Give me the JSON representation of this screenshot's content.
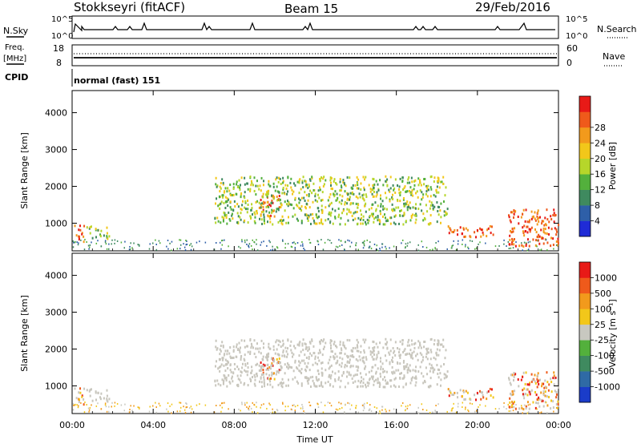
{
  "header": {
    "station": "Stokkseyri (fitACF)",
    "beam": "Beam 15",
    "date": "29/Feb/2016"
  },
  "top_panels": {
    "nsky_label": "N.Sky",
    "nsearch_label": "N.Search",
    "noise_ticks": [
      "10^5",
      "10^0"
    ],
    "freq_label_1": "Freq.",
    "freq_label_2": "[MHz]",
    "freq_ticks": [
      "18",
      "8"
    ],
    "nave_label": "Nave",
    "nave_ticks": [
      "60",
      "0"
    ],
    "cpid_label": "CPID",
    "cpid_value": "normal (fast) 151"
  },
  "chart_data": [
    {
      "type": "heatmap",
      "name": "power",
      "ylabel": "Slant Range [km]",
      "xlabel": "Time UT",
      "yticks": [
        "1000",
        "2000",
        "3000",
        "4000"
      ],
      "ylim": [
        250,
        4600
      ],
      "xlim_hours": [
        0,
        24
      ],
      "colorbar": {
        "label": "Power [dB]",
        "ticks": [
          "4",
          "8",
          "12",
          "16",
          "20",
          "24",
          "28"
        ],
        "colors": [
          "#1f2bd6",
          "#2e5fa8",
          "#3f8a5f",
          "#53b03c",
          "#b6d62a",
          "#f2c71a",
          "#f29a1c",
          "#ef5a1b",
          "#e81a17"
        ]
      },
      "scatter_regions_approx": [
        {
          "t": [
            0.1,
            0.6
          ],
          "range": [
            500,
            1000
          ],
          "level": "high"
        },
        {
          "t": [
            0.7,
            1.8
          ],
          "range": [
            600,
            950
          ],
          "level": "mid"
        },
        {
          "t": [
            9.2,
            10.2
          ],
          "range": [
            1200,
            1800
          ],
          "level": "high"
        },
        {
          "t": [
            7.0,
            18.5
          ],
          "range": [
            1000,
            2300
          ],
          "level": "mid"
        },
        {
          "t": [
            18.5,
            20.8
          ],
          "range": [
            650,
            950
          ],
          "level": "high"
        },
        {
          "t": [
            21.5,
            24.0
          ],
          "range": [
            400,
            1400
          ],
          "level": "high"
        }
      ]
    },
    {
      "type": "heatmap",
      "name": "velocity",
      "ylabel": "Slant Range [km]",
      "xlabel": "Time UT",
      "yticks": [
        "1000",
        "2000",
        "3000",
        "4000"
      ],
      "ylim": [
        250,
        4600
      ],
      "xlim_hours": [
        0,
        24
      ],
      "colorbar": {
        "label": "Velocity [m s⁻¹]",
        "ticks": [
          "1000",
          "500",
          "100",
          "25",
          "-25",
          "-100",
          "-500",
          "-1000"
        ],
        "colors": [
          "#1a3cc9",
          "#2f6aa5",
          "#3f8a5f",
          "#53b03c",
          "#c8c8c0",
          "#f2c71a",
          "#f29a1c",
          "#ef5a1b",
          "#e81a17"
        ]
      },
      "ground_scatter_grey": true
    }
  ],
  "x_axis": {
    "label": "Time UT",
    "ticks": [
      "00:00",
      "04:00",
      "08:00",
      "12:00",
      "16:00",
      "20:00",
      "00:00"
    ]
  }
}
